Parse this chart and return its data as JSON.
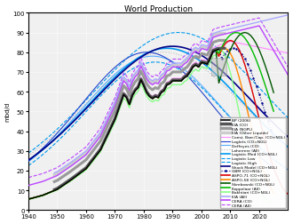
{
  "title": "World Production",
  "ylabel": "mbd/d",
  "xlim": [
    1940,
    2030
  ],
  "ylim": [
    0,
    100
  ],
  "yticks": [
    0,
    10,
    20,
    30,
    40,
    50,
    60,
    70,
    80,
    90,
    100
  ],
  "xticks": [
    1940,
    1950,
    1960,
    1970,
    1980,
    1990,
    2000,
    2010,
    2020
  ],
  "legend_entries": [
    {
      "label": "BP (2006)",
      "color": "#000000",
      "lw": 1.2,
      "ls": "-",
      "marker": "none"
    },
    {
      "label": "EIA (CO)",
      "color": "#555555",
      "lw": 2.5,
      "ls": "-",
      "marker": "none"
    },
    {
      "label": "EIA (NGPL)",
      "color": "#999999",
      "lw": 2.5,
      "ls": "-",
      "marker": "none"
    },
    {
      "label": "EIA (Other Liquids)",
      "color": "#cccccc",
      "lw": 2.5,
      "ls": "-",
      "marker": "none"
    },
    {
      "label": "Const. Barr./Cap. (CO+NGL)",
      "color": "#ff88ff",
      "lw": 0.8,
      "ls": "-",
      "marker": "none"
    },
    {
      "label": "Loglets (CO=NGL)",
      "color": "#2244cc",
      "lw": 0.8,
      "ls": "-",
      "marker": "none"
    },
    {
      "label": "Deffeyes (CO)",
      "color": "#55aaff",
      "lw": 0.8,
      "ls": "-",
      "marker": "none"
    },
    {
      "label": "Laherrere (All)",
      "color": "#bbbbbb",
      "lw": 0.8,
      "ls": ":",
      "marker": "none"
    },
    {
      "label": "Logistic Med (CO+NGL)",
      "color": "#0099ee",
      "lw": 1.2,
      "ls": "-",
      "marker": "none"
    },
    {
      "label": "Logistic Low",
      "color": "#0099ee",
      "lw": 0.8,
      "ls": "--",
      "marker": "none"
    },
    {
      "label": "Logistic High",
      "color": "#0099ee",
      "lw": 0.8,
      "ls": "--",
      "marker": "none"
    },
    {
      "label": "Shock Model (CO+NGL)",
      "color": "#000088",
      "lw": 1.2,
      "ls": "-",
      "marker": "none"
    },
    {
      "label": "GBM (CO+NGL)",
      "color": "#000088",
      "lw": 0.8,
      "ls": ":",
      "marker": "."
    },
    {
      "label": "ASPO-71 (CO+NGL)",
      "color": "#dd0000",
      "lw": 1.2,
      "ls": "-",
      "marker": "none"
    },
    {
      "label": "ASPO-58 (CO+NGL)",
      "color": "#ff8800",
      "lw": 1.2,
      "ls": "-",
      "marker": "none"
    },
    {
      "label": "Skrebowski (CO+NGL)",
      "color": "#005500",
      "lw": 1.2,
      "ls": "-",
      "marker": "none"
    },
    {
      "label": "Koppelaar (All)",
      "color": "#00bb00",
      "lw": 1.2,
      "ls": "-",
      "marker": "none"
    },
    {
      "label": "Bakhtiari (CO+NGL)",
      "color": "#88ff88",
      "lw": 1.2,
      "ls": "-",
      "marker": "none"
    },
    {
      "label": "EIA (All)",
      "color": "#aaaaff",
      "lw": 1.2,
      "ls": "-",
      "marker": "none"
    },
    {
      "label": "CERA (CO)",
      "color": "#bb44ff",
      "lw": 1.2,
      "ls": "-",
      "marker": "none"
    },
    {
      "label": "CERA (All)",
      "color": "#bb44ff",
      "lw": 0.8,
      "ls": "--",
      "marker": "none"
    }
  ]
}
